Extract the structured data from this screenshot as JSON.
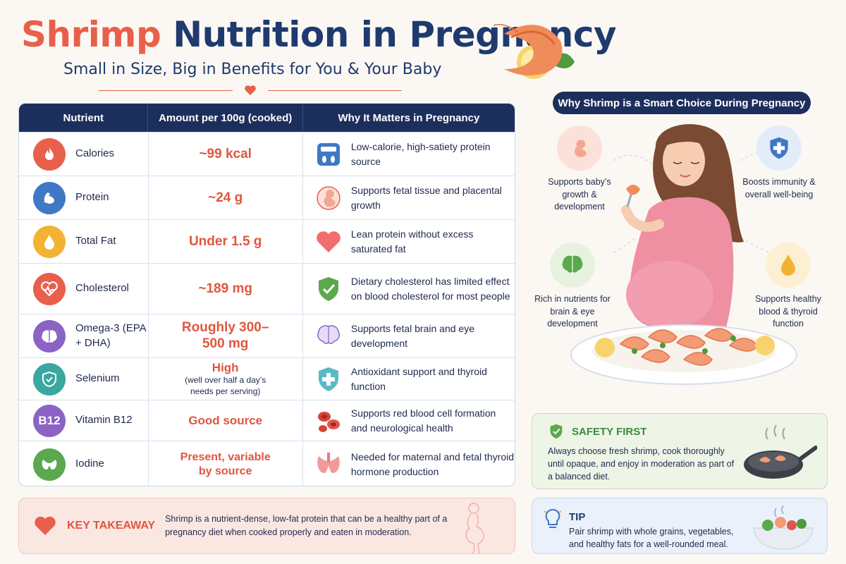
{
  "header": {
    "title_part1": "Shrimp",
    "title_part2": "Nutrition in Pregnancy",
    "subtitle": "Small in Size, Big in Benefits for You & Your Baby"
  },
  "table": {
    "headers": [
      "Nutrient",
      "Amount per 100g (cooked)",
      "Why It Matters in Pregnancy"
    ],
    "rows": [
      {
        "nutrient": "Calories",
        "amount": "~99 kcal",
        "amount_note": "",
        "why": "Low-calorie, high-satiety protein source",
        "icon": "flame-icon",
        "why_icon": "scale-icon",
        "color": "#e8604c"
      },
      {
        "nutrient": "Protein",
        "amount": "~24 g",
        "amount_note": "",
        "why": "Supports fetal tissue and placental growth",
        "icon": "bicep-icon",
        "why_icon": "fetus-icon",
        "color": "#3f78c4"
      },
      {
        "nutrient": "Total Fat",
        "amount": "Under 1.5 g",
        "amount_note": "",
        "why": "Lean protein without excess saturated fat",
        "icon": "drop-icon",
        "why_icon": "heart-icon",
        "color": "#f2b233"
      },
      {
        "nutrient": "Cholesterol",
        "amount": "~189 mg",
        "amount_note": "",
        "why": "Dietary cholesterol has limited effect on blood cholesterol for most people",
        "icon": "heartbeat-icon",
        "why_icon": "check-shield-icon",
        "color": "#e8604c"
      },
      {
        "nutrient": "Omega-3 (EPA + DHA)",
        "amount": "Roughly 300–500 mg",
        "amount_note": "",
        "why": "Supports fetal brain and eye development",
        "icon": "brain-icon",
        "why_icon": "brain-icon",
        "color": "#8a63c4"
      },
      {
        "nutrient": "Selenium",
        "amount": "High",
        "amount_note": "(well over half a day’s needs per serving)",
        "why": "Antioxidant support and thyroid function",
        "icon": "shield-icon",
        "why_icon": "plus-shield-icon",
        "color": "#3aa7a0"
      },
      {
        "nutrient": "Vitamin B12",
        "amount": "Good source",
        "amount_note": "",
        "why": "Supports red blood cell formation and neurological health",
        "icon": "b12-icon",
        "why_icon": "blood-cells-icon",
        "color": "#8a63c4"
      },
      {
        "nutrient": "Iodine",
        "amount": "Present, variable by source",
        "amount_note": "",
        "why": "Needed for maternal and fetal thyroid hormone production",
        "icon": "thyroid-icon",
        "why_icon": "thyroid-icon",
        "color": "#5ba84d"
      }
    ]
  },
  "b12_label": "B12",
  "takeaway": {
    "label": "KEY TAKEAWAY",
    "text": "Shrimp is a nutrient-dense, low-fat protein that can be a healthy part of a pregnancy diet when cooked properly and eaten in moderation."
  },
  "right": {
    "pill": "Why Shrimp is a Smart Choice During Pregnancy",
    "benefits": {
      "growth": "Supports baby’s growth & development",
      "immunity": "Boosts immunity & overall well-being",
      "brain": "Rich in nutrients for brain & eye development",
      "blood": "Supports healthy blood & thyroid function"
    }
  },
  "safety": {
    "title": "SAFETY FIRST",
    "text": "Always choose fresh shrimp, cook thoroughly until opaque, and enjoy in moderation as part of a balanced diet."
  },
  "tip": {
    "title": "TIP",
    "text": "Pair shrimp with whole grains, vegetables, and healthy fats for a well-rounded meal."
  }
}
